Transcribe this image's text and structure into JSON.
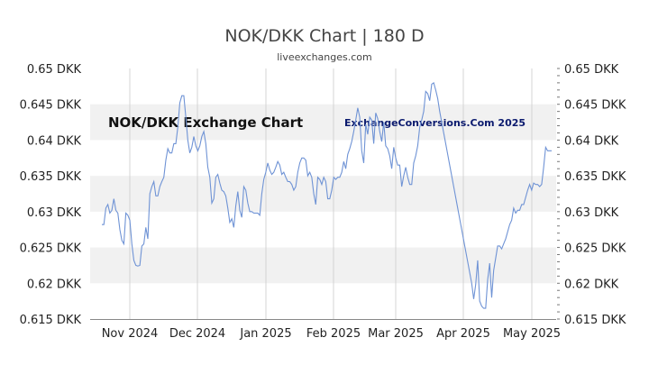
{
  "chart_data": {
    "type": "line",
    "title": "NOK/DKK Chart | 180 D",
    "subtitle": "liveexchanges.com",
    "watermark_left": "NOK/DKK Exchange Chart",
    "watermark_right": "ExchangeConversions.Com 2025",
    "ylim": [
      0.615,
      0.65
    ],
    "y_ticks": [
      "0.65 DKK",
      "0.645 DKK",
      "0.64 DKK",
      "0.635 DKK",
      "0.63 DKK",
      "0.625 DKK",
      "0.62 DKK",
      "0.615 DKK"
    ],
    "x_ticks": [
      "Nov 2024",
      "Dec 2024",
      "Jan 2025",
      "Feb 2025",
      "Mar 2025",
      "Apr 2025",
      "May 2025"
    ],
    "grid": "horizontal bands",
    "line_color": "#6f93d5",
    "band_color": "#f1f1f1",
    "series": [
      {
        "values": [
          0.6282,
          0.6282,
          0.6305,
          0.631,
          0.6298,
          0.6302,
          0.6318,
          0.6302,
          0.6298,
          0.6275,
          0.626,
          0.6255,
          0.6298,
          0.6295,
          0.6288,
          0.6255,
          0.6232,
          0.6225,
          0.6224,
          0.6225,
          0.6252,
          0.6255,
          0.6278,
          0.6262,
          0.6325,
          0.6335,
          0.6342,
          0.6322,
          0.6322,
          0.6335,
          0.6342,
          0.6348,
          0.6372,
          0.6388,
          0.6382,
          0.6382,
          0.6395,
          0.6395,
          0.6418,
          0.6452,
          0.6462,
          0.6462,
          0.6432,
          0.64,
          0.6382,
          0.639,
          0.6405,
          0.6392,
          0.6385,
          0.6392,
          0.6405,
          0.6412,
          0.6395,
          0.6362,
          0.6348,
          0.6312,
          0.6318,
          0.6348,
          0.6352,
          0.634,
          0.633,
          0.6328,
          0.6322,
          0.6305,
          0.6285,
          0.629,
          0.6278,
          0.6308,
          0.6328,
          0.6302,
          0.6292,
          0.6335,
          0.633,
          0.6312,
          0.63,
          0.63,
          0.6298,
          0.6298,
          0.6298,
          0.6295,
          0.6325,
          0.6345,
          0.6355,
          0.6368,
          0.6358,
          0.6352,
          0.6355,
          0.6362,
          0.637,
          0.6365,
          0.6352,
          0.6355,
          0.6348,
          0.6342,
          0.6342,
          0.6338,
          0.633,
          0.6335,
          0.6355,
          0.6368,
          0.6375,
          0.6375,
          0.6372,
          0.635,
          0.6355,
          0.6348,
          0.6325,
          0.631,
          0.6348,
          0.6345,
          0.6338,
          0.6348,
          0.6342,
          0.6318,
          0.6318,
          0.633,
          0.6348,
          0.6345,
          0.6348,
          0.6348,
          0.6355,
          0.637,
          0.636,
          0.638,
          0.6388,
          0.6398,
          0.6412,
          0.6428,
          0.6445,
          0.6432,
          0.6385,
          0.6368,
          0.6422,
          0.6408,
          0.6432,
          0.6428,
          0.6395,
          0.6438,
          0.643,
          0.6412,
          0.6398,
          0.6425,
          0.6392,
          0.6388,
          0.6378,
          0.636,
          0.639,
          0.6375,
          0.6365,
          0.6365,
          0.6335,
          0.635,
          0.6362,
          0.6348,
          0.6338,
          0.6338,
          0.6368,
          0.6378,
          0.6392,
          0.6418,
          0.6428,
          0.644,
          0.6468,
          0.6465,
          0.6455,
          0.6478,
          0.648,
          0.647,
          0.6458,
          0.644,
          0.6425,
          0.641,
          0.6395,
          0.638,
          0.6365,
          0.635,
          0.6335,
          0.632,
          0.6305,
          0.629,
          0.6275,
          0.626,
          0.6245,
          0.623,
          0.6215,
          0.62,
          0.6178,
          0.6198,
          0.6232,
          0.6175,
          0.6168,
          0.6165,
          0.6165,
          0.6205,
          0.6228,
          0.618,
          0.6218,
          0.6235,
          0.6252,
          0.6252,
          0.6248,
          0.6255,
          0.6262,
          0.6272,
          0.6282,
          0.6288,
          0.6305,
          0.6298,
          0.6302,
          0.6302,
          0.631,
          0.631,
          0.632,
          0.633,
          0.6338,
          0.633,
          0.634,
          0.6338,
          0.6338,
          0.6335,
          0.6338,
          0.6362,
          0.639,
          0.6385,
          0.6385,
          0.6385
        ]
      }
    ]
  }
}
